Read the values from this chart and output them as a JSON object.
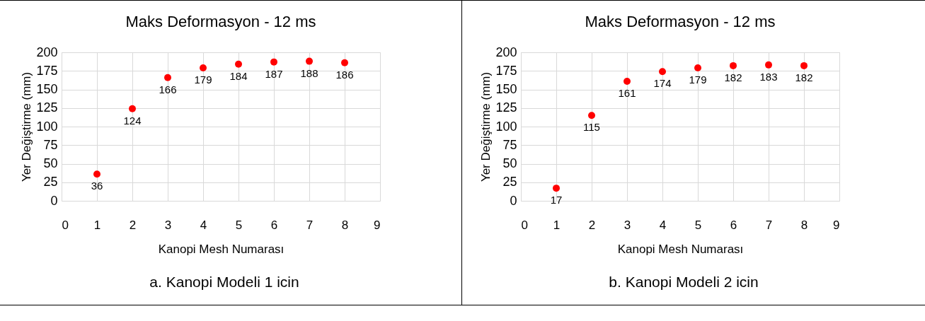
{
  "chart_data": [
    {
      "type": "scatter",
      "title": "Maks Deformasyon - 12 ms",
      "xlabel": "Kanopi Mesh Numarası",
      "ylabel": "Yer Değiştirme (mm)",
      "x": [
        1,
        2,
        3,
        4,
        5,
        6,
        7,
        8
      ],
      "series": [
        {
          "color": "#ff0000",
          "values": [
            36,
            124,
            166,
            179,
            184,
            187,
            188,
            186
          ]
        }
      ],
      "xlim": [
        0,
        9
      ],
      "xticks": [
        0,
        1,
        2,
        3,
        4,
        5,
        6,
        7,
        8,
        9
      ],
      "ylim": [
        0,
        200
      ],
      "yticks": [
        0,
        25,
        50,
        75,
        100,
        125,
        150,
        175,
        200
      ],
      "grid": true,
      "marker": "circle",
      "data_labels": true,
      "annotations": [
        "a. Kanopi Modeli 1 icin"
      ]
    },
    {
      "type": "scatter",
      "title": "Maks Deformasyon - 12 ms",
      "xlabel": "Kanopi Mesh Numarası",
      "ylabel": "Yer Değiştirme (mm)",
      "x": [
        1,
        2,
        3,
        4,
        5,
        6,
        7,
        8
      ],
      "series": [
        {
          "color": "#ff0000",
          "values": [
            17,
            115,
            161,
            174,
            179,
            182,
            183,
            182
          ]
        }
      ],
      "xlim": [
        0,
        9
      ],
      "xticks": [
        0,
        1,
        2,
        3,
        4,
        5,
        6,
        7,
        8,
        9
      ],
      "ylim": [
        0,
        200
      ],
      "yticks": [
        0,
        25,
        50,
        75,
        100,
        125,
        150,
        175,
        200
      ],
      "grid": true,
      "marker": "circle",
      "data_labels": true,
      "annotations": [
        "b. Kanopi Modeli 2 icin"
      ]
    }
  ]
}
